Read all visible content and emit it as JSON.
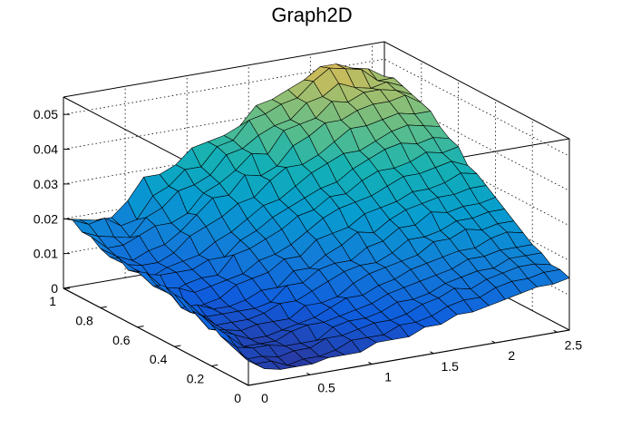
{
  "chart_data": {
    "type": "surface",
    "title": "Graph2D",
    "palette": "kBird",
    "grid": true,
    "x_range": [
      0,
      2.6
    ],
    "y_range": [
      0,
      1
    ],
    "z_range": [
      0,
      0.055
    ],
    "x_ticks": [
      {
        "value": 0,
        "label": "0"
      },
      {
        "value": 0.5,
        "label": "0.5"
      },
      {
        "value": 1,
        "label": "1"
      },
      {
        "value": 1.5,
        "label": "1.5"
      },
      {
        "value": 2,
        "label": "2"
      },
      {
        "value": 2.5,
        "label": "2.5"
      }
    ],
    "y_ticks": [
      {
        "value": 0,
        "label": "0"
      },
      {
        "value": 0.2,
        "label": "0.2"
      },
      {
        "value": 0.4,
        "label": "0.4"
      },
      {
        "value": 0.6,
        "label": "0.6"
      },
      {
        "value": 0.8,
        "label": "0.8"
      },
      {
        "value": 1,
        "label": "1"
      }
    ],
    "z_ticks": [
      {
        "value": 0,
        "label": "0"
      },
      {
        "value": 0.01,
        "label": "0.01"
      },
      {
        "value": 0.02,
        "label": "0.02"
      },
      {
        "value": 0.03,
        "label": "0.03"
      },
      {
        "value": 0.04,
        "label": "0.04"
      },
      {
        "value": 0.05,
        "label": "0.05"
      }
    ],
    "x": [
      0,
      0.13,
      0.26,
      0.39,
      0.52,
      0.65,
      0.78,
      0.91,
      1.04,
      1.17,
      1.3,
      1.43,
      1.56,
      1.69,
      1.82,
      1.95,
      2.08,
      2.21,
      2.34,
      2.47,
      2.6
    ],
    "y": [
      1,
      0.95,
      0.9,
      0.85,
      0.8,
      0.75,
      0.7,
      0.65,
      0.6,
      0.55,
      0.5,
      0.45,
      0.4,
      0.35,
      0.3,
      0.25,
      0.2,
      0.15,
      0.1,
      0.05,
      0
    ],
    "z": [
      [
        0.02,
        0.019,
        0.018,
        0.018,
        0.022,
        0.028,
        0.028,
        0.03,
        0.034,
        0.035,
        0.036,
        0.038,
        0.043,
        0.044,
        0.046,
        0.048,
        0.051,
        0.051,
        0.049,
        0.048,
        0.045
      ],
      [
        0.021,
        0.019,
        0.02,
        0.017,
        0.018,
        0.024,
        0.026,
        0.03,
        0.03,
        0.035,
        0.036,
        0.041,
        0.042,
        0.044,
        0.045,
        0.049,
        0.052,
        0.051,
        0.05,
        0.046,
        0.046
      ],
      [
        0.019,
        0.017,
        0.016,
        0.015,
        0.02,
        0.022,
        0.026,
        0.027,
        0.029,
        0.034,
        0.035,
        0.038,
        0.04,
        0.041,
        0.045,
        0.046,
        0.049,
        0.047,
        0.046,
        0.047,
        0.045
      ],
      [
        0.019,
        0.015,
        0.015,
        0.017,
        0.019,
        0.019,
        0.021,
        0.026,
        0.028,
        0.031,
        0.035,
        0.034,
        0.04,
        0.041,
        0.042,
        0.046,
        0.045,
        0.047,
        0.047,
        0.046,
        0.044
      ],
      [
        0.017,
        0.014,
        0.012,
        0.014,
        0.015,
        0.018,
        0.022,
        0.026,
        0.026,
        0.031,
        0.03,
        0.032,
        0.037,
        0.039,
        0.042,
        0.042,
        0.044,
        0.045,
        0.045,
        0.046,
        0.043
      ],
      [
        0.016,
        0.013,
        0.012,
        0.012,
        0.014,
        0.018,
        0.02,
        0.022,
        0.025,
        0.026,
        0.03,
        0.033,
        0.033,
        0.035,
        0.038,
        0.041,
        0.041,
        0.042,
        0.043,
        0.042,
        0.042
      ],
      [
        0.017,
        0.013,
        0.01,
        0.012,
        0.013,
        0.014,
        0.017,
        0.019,
        0.022,
        0.025,
        0.026,
        0.029,
        0.032,
        0.034,
        0.036,
        0.036,
        0.038,
        0.04,
        0.041,
        0.04,
        0.039
      ],
      [
        0.015,
        0.013,
        0.012,
        0.012,
        0.012,
        0.014,
        0.014,
        0.018,
        0.02,
        0.023,
        0.025,
        0.027,
        0.029,
        0.03,
        0.033,
        0.035,
        0.037,
        0.038,
        0.037,
        0.038,
        0.037
      ],
      [
        0.016,
        0.011,
        0.008,
        0.01,
        0.011,
        0.011,
        0.016,
        0.017,
        0.019,
        0.021,
        0.024,
        0.025,
        0.028,
        0.028,
        0.031,
        0.033,
        0.033,
        0.034,
        0.036,
        0.035,
        0.036
      ],
      [
        0.017,
        0.012,
        0.011,
        0.009,
        0.01,
        0.011,
        0.012,
        0.015,
        0.016,
        0.018,
        0.021,
        0.024,
        0.026,
        0.027,
        0.028,
        0.03,
        0.032,
        0.032,
        0.033,
        0.034,
        0.032
      ],
      [
        0.015,
        0.011,
        0.006,
        0.007,
        0.008,
        0.011,
        0.012,
        0.013,
        0.016,
        0.016,
        0.02,
        0.021,
        0.022,
        0.025,
        0.026,
        0.027,
        0.029,
        0.029,
        0.03,
        0.032,
        0.031
      ],
      [
        0.016,
        0.009,
        0.009,
        0.007,
        0.007,
        0.008,
        0.01,
        0.01,
        0.014,
        0.014,
        0.017,
        0.019,
        0.022,
        0.021,
        0.024,
        0.026,
        0.027,
        0.028,
        0.028,
        0.029,
        0.029
      ],
      [
        0.015,
        0.009,
        0.007,
        0.007,
        0.007,
        0.007,
        0.008,
        0.012,
        0.012,
        0.015,
        0.016,
        0.016,
        0.019,
        0.02,
        0.023,
        0.023,
        0.026,
        0.025,
        0.026,
        0.026,
        0.027
      ],
      [
        0.015,
        0.01,
        0.006,
        0.006,
        0.006,
        0.007,
        0.009,
        0.009,
        0.011,
        0.013,
        0.015,
        0.016,
        0.016,
        0.018,
        0.021,
        0.021,
        0.022,
        0.024,
        0.024,
        0.025,
        0.025
      ],
      [
        0.013,
        0.007,
        0.006,
        0.005,
        0.006,
        0.006,
        0.006,
        0.009,
        0.009,
        0.01,
        0.013,
        0.015,
        0.016,
        0.017,
        0.018,
        0.021,
        0.021,
        0.023,
        0.022,
        0.023,
        0.023
      ],
      [
        0.013,
        0.008,
        0.006,
        0.004,
        0.004,
        0.005,
        0.006,
        0.007,
        0.009,
        0.011,
        0.011,
        0.013,
        0.014,
        0.016,
        0.017,
        0.018,
        0.019,
        0.019,
        0.021,
        0.022,
        0.021
      ],
      [
        0.012,
        0.008,
        0.004,
        0.004,
        0.004,
        0.006,
        0.007,
        0.007,
        0.008,
        0.009,
        0.01,
        0.012,
        0.013,
        0.014,
        0.015,
        0.016,
        0.018,
        0.018,
        0.019,
        0.019,
        0.019
      ],
      [
        0.01,
        0.006,
        0.005,
        0.005,
        0.004,
        0.004,
        0.004,
        0.007,
        0.008,
        0.008,
        0.009,
        0.011,
        0.011,
        0.012,
        0.014,
        0.015,
        0.016,
        0.016,
        0.018,
        0.018,
        0.018
      ],
      [
        0.009,
        0.004,
        0.004,
        0.003,
        0.004,
        0.004,
        0.006,
        0.006,
        0.007,
        0.008,
        0.008,
        0.009,
        0.011,
        0.012,
        0.014,
        0.013,
        0.015,
        0.016,
        0.017,
        0.017,
        0.016
      ],
      [
        0.008,
        0.004,
        0.004,
        0.002,
        0.003,
        0.003,
        0.004,
        0.006,
        0.006,
        0.006,
        0.008,
        0.008,
        0.009,
        0.011,
        0.012,
        0.012,
        0.014,
        0.015,
        0.015,
        0.016,
        0.016
      ],
      [
        0.007,
        0.004,
        0.003,
        0.003,
        0.003,
        0.004,
        0.004,
        0.004,
        0.006,
        0.006,
        0.006,
        0.008,
        0.008,
        0.01,
        0.01,
        0.011,
        0.012,
        0.013,
        0.014,
        0.014,
        0.015
      ]
    ]
  }
}
